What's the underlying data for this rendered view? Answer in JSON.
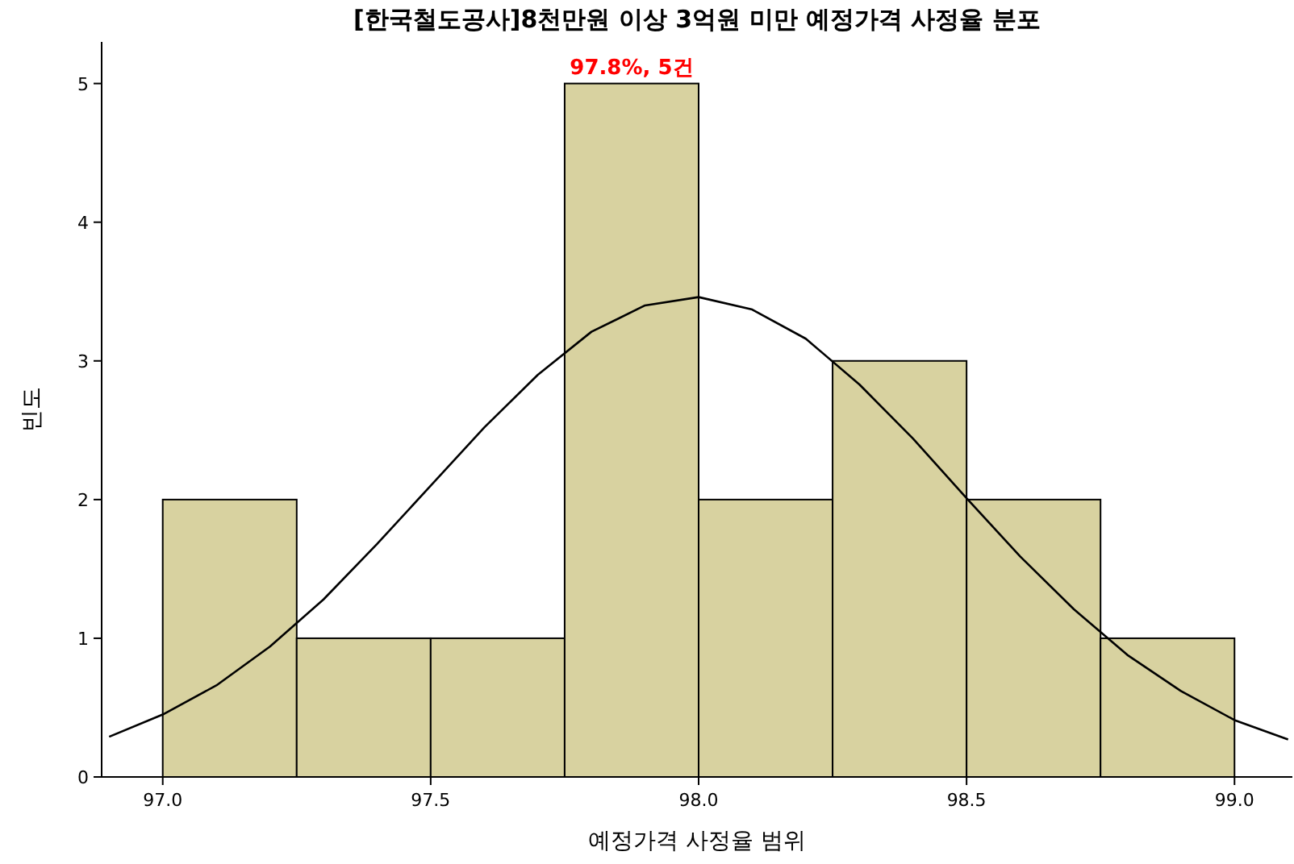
{
  "chart_data": {
    "type": "histogram",
    "title": "[한국철도공사]8천만원 이상 3억원 미만 예정가격 사정율 분포",
    "xlabel": "예정가격 사정율 범위",
    "ylabel": "빈도",
    "bins": [
      97.0,
      97.25,
      97.5,
      97.75,
      98.0,
      98.25,
      98.5,
      98.75,
      99.0
    ],
    "values": [
      2,
      1,
      1,
      5,
      2,
      3,
      2,
      1
    ],
    "color": "#d8d2a0",
    "series": [
      {
        "type": "line",
        "color": "#000000",
        "x": [
          96.9,
          97.0,
          97.1,
          97.2,
          97.3,
          97.4,
          97.5,
          97.6,
          97.7,
          97.8,
          97.9,
          98.0,
          98.1,
          98.2,
          98.3,
          98.4,
          98.5,
          98.6,
          98.7,
          98.8,
          98.9,
          99.0,
          99.1
        ],
        "values": [
          0.29,
          0.45,
          0.66,
          0.94,
          1.28,
          1.68,
          2.1,
          2.52,
          2.9,
          3.21,
          3.4,
          3.46,
          3.37,
          3.16,
          2.83,
          2.44,
          2.01,
          1.59,
          1.21,
          0.88,
          0.62,
          0.41,
          0.27
        ]
      }
    ],
    "xlim": [
      96.886,
      99.108
    ],
    "xticks": [
      {
        "value": 97,
        "label": "97.0"
      },
      {
        "value": 97.5,
        "label": "97.5"
      },
      {
        "value": 98,
        "label": "98.0"
      },
      {
        "value": 98.5,
        "label": "98.5"
      },
      {
        "value": 99,
        "label": "99.0"
      }
    ],
    "ylim": [
      0,
      5.3
    ],
    "yticks": [
      0,
      1,
      2,
      3,
      4,
      5
    ],
    "annotations": [
      {
        "text": "97.8%, 5건",
        "x": 97.875,
        "y": 5
      }
    ]
  }
}
